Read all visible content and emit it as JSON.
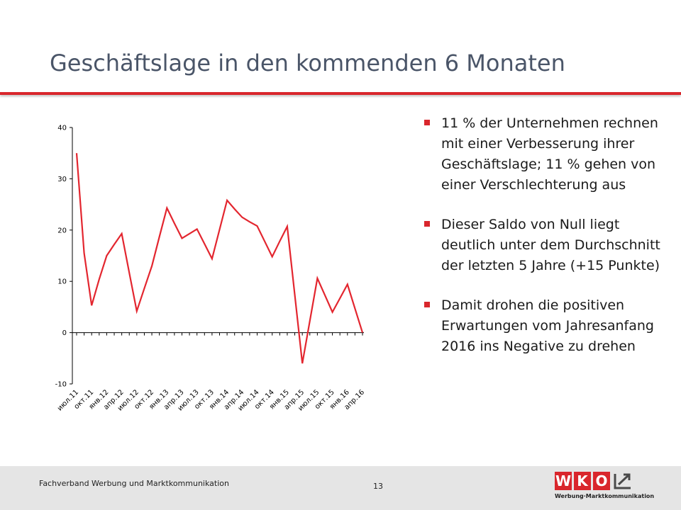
{
  "slide": {
    "title": "Geschäftslage in den kommenden 6 Monaten",
    "bullets": [
      "11 % der Unternehmen rechnen mit einer Verbesserung ihrer Geschäftslage; 11 % gehen von einer Verschlechterung aus",
      "Dieser Saldo von Null liegt deutlich unter dem Durchschnitt der letzten 5 Jahre (+15 Punkte)",
      "Damit drohen die positiven Erwartungen vom Jahresanfang 2016 ins Negative zu drehen"
    ]
  },
  "footer": {
    "organization": "Fachverband Werbung und Marktkommunikation",
    "page_number": "13",
    "logo_letters": [
      "W",
      "K",
      "O"
    ],
    "logo_subtitle": "Werbung·Marktkommunikation"
  },
  "colors": {
    "accent": "#d9262c",
    "line": "#e3262f",
    "title": "#4a5568",
    "footer_bg": "#e5e5e5"
  },
  "chart_data": {
    "type": "line",
    "title": "",
    "xlabel": "",
    "ylabel": "",
    "ylim": [
      -10,
      40
    ],
    "yticks": [
      -10,
      0,
      10,
      20,
      30,
      40
    ],
    "grid": false,
    "categories": [
      "июл.11",
      "",
      "окт.11",
      "",
      "янв.12",
      "",
      "апр.12",
      "",
      "июл.12",
      "",
      "окт.12",
      "",
      "янв.13",
      "",
      "апр.13",
      "",
      "июл.13",
      "",
      "окт.13",
      "",
      "янв.14",
      "",
      "апр.14",
      "",
      "июл.14",
      "",
      "окт.14",
      "",
      "янв.15",
      "",
      "апр.15",
      "",
      "июл.15",
      "",
      "окт.15",
      "",
      "янв.16",
      "",
      "апр.16"
    ],
    "series": [
      {
        "values": [
          35,
          15.5,
          5.3,
          10.4,
          15,
          17.2,
          19.3,
          11.7,
          4.2,
          8.6,
          13,
          18.7,
          24.3,
          21.3,
          18.4,
          19.3,
          20.2,
          17.3,
          14.4,
          20.1,
          25.8,
          24.1,
          22.5,
          21.6,
          20.8,
          17.8,
          14.8,
          17.8,
          20.7,
          7.3,
          -6,
          2.3,
          10.6,
          7.3,
          4,
          6.7,
          9.4,
          4.7,
          0
        ]
      }
    ]
  }
}
